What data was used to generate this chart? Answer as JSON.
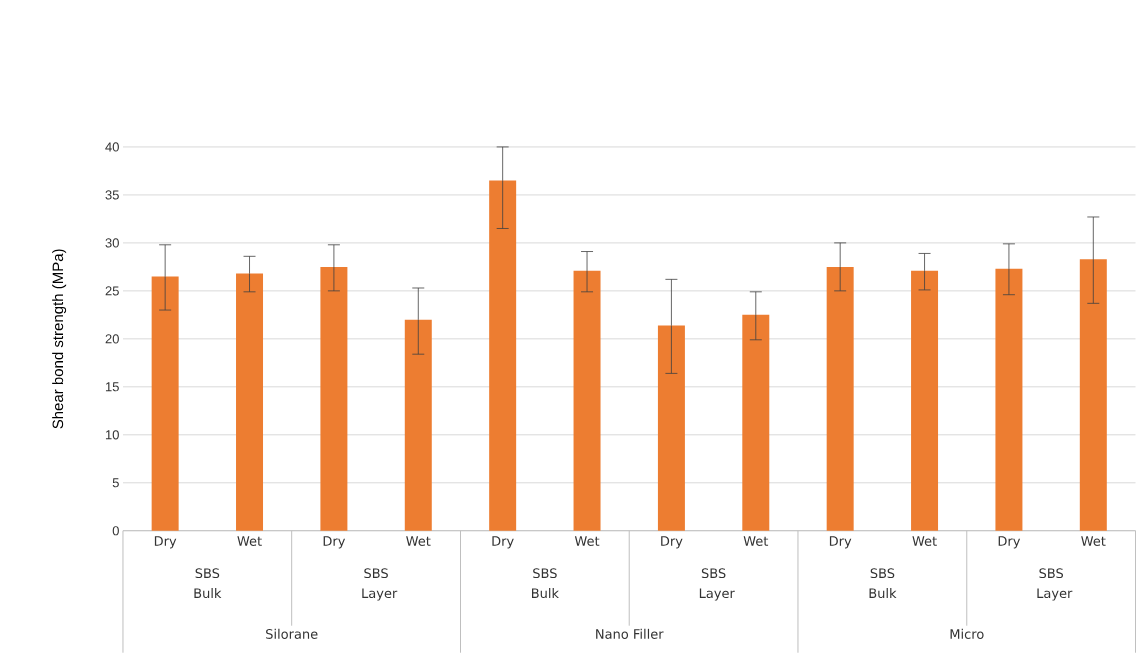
{
  "chart_data": {
    "type": "bar",
    "ylabel": "Shear bond strength (MPa)",
    "categories": [
      "Dry",
      "Wet",
      "Dry",
      "Wet",
      "Dry",
      "Wet",
      "Dry",
      "Wet",
      "Dry",
      "Wet",
      "Dry",
      "Wet"
    ],
    "values": [
      26.5,
      26.8,
      27.5,
      22.0,
      36.5,
      27.1,
      21.4,
      22.5,
      27.5,
      27.1,
      27.3,
      28.3
    ],
    "errors": [
      [
        23.0,
        29.8
      ],
      [
        24.9,
        28.6
      ],
      [
        25.0,
        29.8
      ],
      [
        18.4,
        25.3
      ],
      [
        31.5,
        40
      ],
      [
        24.9,
        29.1
      ],
      [
        16.4,
        26.2
      ],
      [
        19.9,
        24.9
      ],
      [
        25.0,
        30.0
      ],
      [
        25.1,
        28.9
      ],
      [
        24.6,
        29.9
      ],
      [
        23.7,
        32.7
      ]
    ],
    "color": "#ed7d31",
    "ylim": [
      0,
      40
    ],
    "yticks": [
      0,
      5,
      10,
      15,
      20,
      25,
      30,
      35,
      40
    ],
    "grid": "y",
    "annotations": [
      "SBS Bulk",
      "SBS Layer",
      "SBS Bulk",
      "SBS Layer",
      "SBS Bulk",
      "SBS Layer",
      "Silorane",
      "Nano Filler",
      "Micro"
    ]
  }
}
